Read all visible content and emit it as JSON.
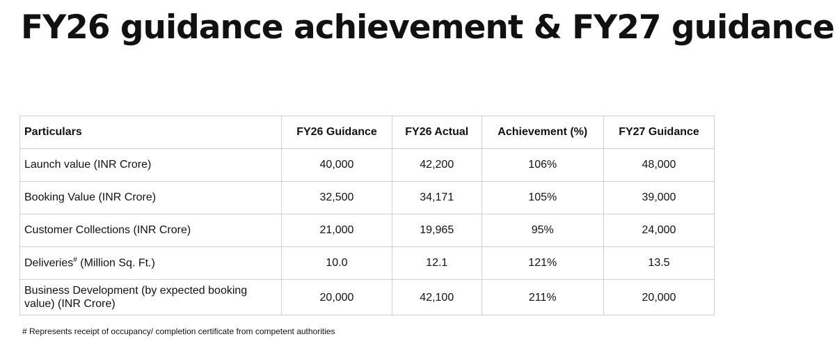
{
  "header": {
    "title": "FY26 guidance achievement & FY27 guidance"
  },
  "table": {
    "columns": [
      "Particulars",
      "FY26 Guidance",
      "FY26 Actual",
      "Achievement (%)",
      "FY27 Guidance"
    ],
    "rows": [
      {
        "label": {
          "text": "Launch value (INR Crore)"
        },
        "cells": [
          "40,000",
          "42,200",
          "106%",
          "48,000"
        ]
      },
      {
        "label": {
          "text": "Booking Value (INR Crore)"
        },
        "cells": [
          "32,500",
          "34,171",
          "105%",
          "39,000"
        ]
      },
      {
        "label": {
          "text": "Customer Collections (INR Crore)"
        },
        "cells": [
          "21,000",
          "19,965",
          "95%",
          "24,000"
        ]
      },
      {
        "label": {
          "text": "Deliveries",
          "sup": "#",
          "suffix": " (Million Sq. Ft.)"
        },
        "cells": [
          "10.0",
          "12.1",
          "121%",
          "13.5"
        ]
      },
      {
        "label": {
          "text": "Business Development (by expected booking value) (INR Crore)"
        },
        "cells": [
          "20,000",
          "42,100",
          "211%",
          "20,000"
        ]
      }
    ]
  },
  "footnote": "# Represents receipt of occupancy/ completion certificate from competent authorities"
}
